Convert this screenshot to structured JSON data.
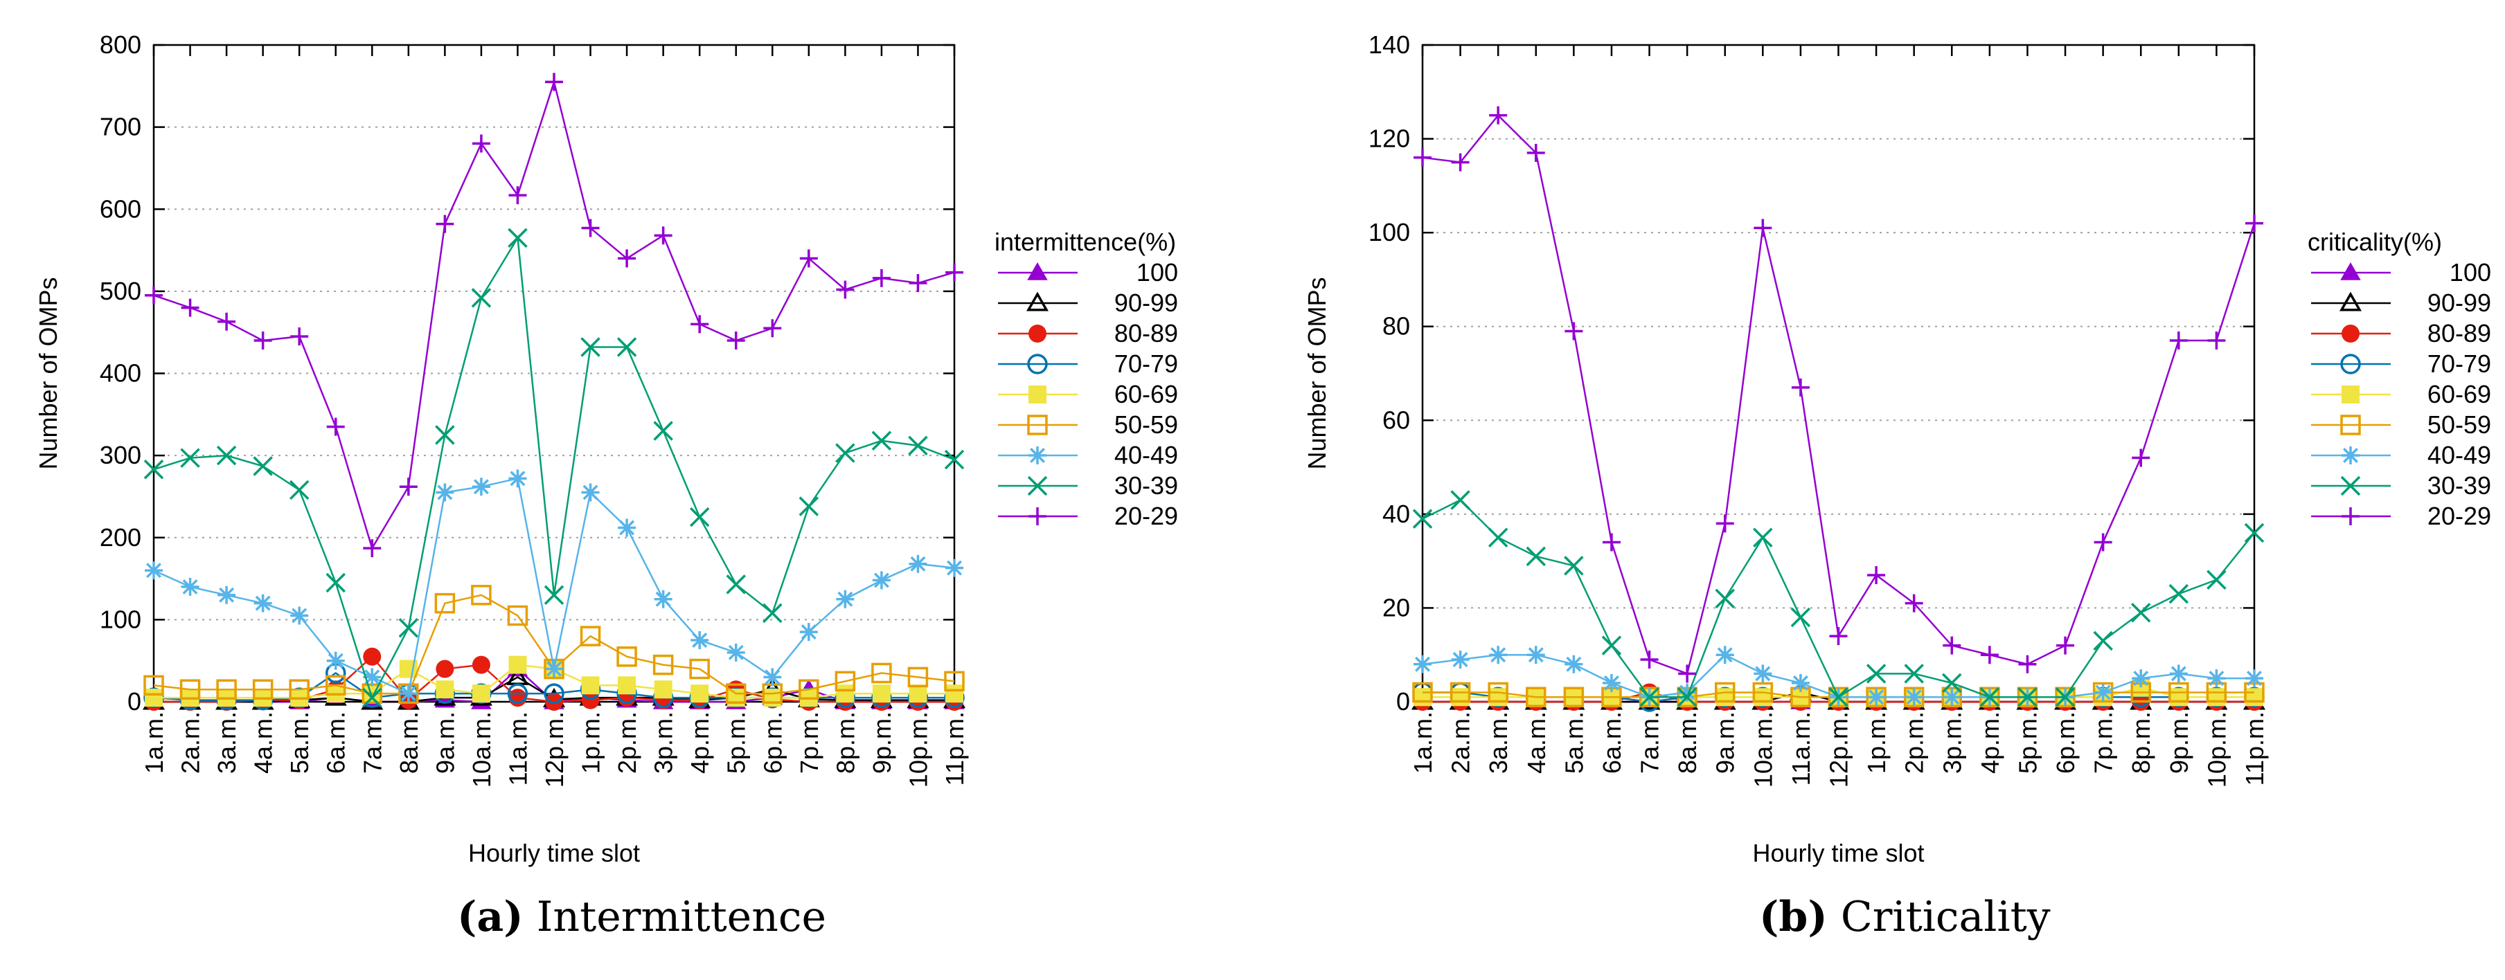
{
  "chart_data": [
    {
      "type": "line",
      "ylabel": "Number of OMPs",
      "xlabel": "Hourly time slot",
      "ylim": [
        0,
        800
      ],
      "yticks": [
        0,
        100,
        200,
        300,
        400,
        500,
        600,
        700,
        800
      ],
      "grid": "horizontal dotted",
      "legend_title": "intermittence(%)",
      "legend_position": "right",
      "categories": [
        "1a.m.",
        "2a.m.",
        "3a.m.",
        "4a.m.",
        "5a.m.",
        "6a.m.",
        "7a.m.",
        "8a.m.",
        "9a.m.",
        "10a.m.",
        "11a.m.",
        "12p.m.",
        "1p.m.",
        "2p.m.",
        "3p.m.",
        "4p.m.",
        "5p.m.",
        "6p.m.",
        "7p.m.",
        "8p.m.",
        "9p.m.",
        "10p.m.",
        "11p.m."
      ],
      "series": [
        {
          "name": "100",
          "color": "#9400d3",
          "marker": "filled-triangle",
          "values": [
            0,
            0,
            0,
            0,
            0,
            5,
            0,
            0,
            2,
            0,
            40,
            0,
            5,
            2,
            0,
            0,
            0,
            5,
            15,
            0,
            0,
            0,
            0
          ]
        },
        {
          "name": "90-99",
          "color": "#000000",
          "marker": "open-triangle",
          "values": [
            0,
            0,
            0,
            0,
            2,
            5,
            0,
            0,
            5,
            5,
            30,
            3,
            5,
            5,
            5,
            2,
            5,
            15,
            3,
            2,
            2,
            2,
            2
          ]
        },
        {
          "name": "80-89",
          "color": "#e51e10",
          "marker": "filled-circle",
          "values": [
            0,
            0,
            0,
            2,
            2,
            15,
            55,
            2,
            40,
            45,
            5,
            0,
            2,
            5,
            2,
            2,
            15,
            3,
            0,
            0,
            0,
            0,
            0
          ]
        },
        {
          "name": "70-79",
          "color": "#0072b2",
          "marker": "open-circle",
          "values": [
            5,
            2,
            2,
            2,
            5,
            35,
            5,
            10,
            10,
            10,
            10,
            10,
            15,
            10,
            5,
            5,
            5,
            5,
            5,
            5,
            5,
            5,
            5
          ]
        },
        {
          "name": "60-69",
          "color": "#f0e442",
          "marker": "filled-square",
          "values": [
            5,
            5,
            5,
            5,
            5,
            10,
            10,
            40,
            15,
            10,
            45,
            40,
            20,
            20,
            15,
            10,
            5,
            5,
            5,
            10,
            10,
            10,
            10
          ]
        },
        {
          "name": "50-59",
          "color": "#e69f00",
          "marker": "open-square",
          "values": [
            20,
            15,
            15,
            15,
            15,
            20,
            10,
            10,
            120,
            130,
            105,
            40,
            80,
            55,
            45,
            40,
            10,
            10,
            15,
            25,
            35,
            30,
            25
          ]
        },
        {
          "name": "40-49",
          "color": "#56b4e9",
          "marker": "asterisk",
          "values": [
            160,
            140,
            130,
            120,
            105,
            50,
            30,
            10,
            255,
            262,
            272,
            40,
            255,
            212,
            125,
            75,
            60,
            30,
            85,
            125,
            148,
            168,
            163
          ]
        },
        {
          "name": "30-39",
          "color": "#009e73",
          "marker": "cross",
          "values": [
            283,
            297,
            300,
            287,
            258,
            145,
            5,
            90,
            325,
            492,
            565,
            130,
            432,
            432,
            330,
            225,
            143,
            108,
            238,
            303,
            318,
            312,
            295
          ]
        },
        {
          "name": "20-29",
          "color": "#9400d3",
          "marker": "plus",
          "values": [
            495,
            480,
            463,
            440,
            445,
            335,
            187,
            262,
            582,
            680,
            617,
            755,
            577,
            540,
            568,
            460,
            440,
            455,
            540,
            502,
            516,
            510,
            523
          ]
        }
      ]
    },
    {
      "type": "line",
      "ylabel": "Number of OMPs",
      "xlabel": "Hourly time slot",
      "ylim": [
        0,
        140
      ],
      "yticks": [
        0,
        20,
        40,
        60,
        80,
        100,
        120,
        140
      ],
      "grid": "horizontal dotted",
      "legend_title": "criticality(%)",
      "legend_position": "right",
      "categories": [
        "1a.m.",
        "2a.m.",
        "3a.m.",
        "4a.m.",
        "5a.m.",
        "6a.m.",
        "7a.m.",
        "8a.m.",
        "9a.m.",
        "10a.m.",
        "11a.m.",
        "12p.m.",
        "1p.m.",
        "2p.m.",
        "3p.m.",
        "4p.m.",
        "5p.m.",
        "6p.m.",
        "7p.m.",
        "8p.m.",
        "9p.m.",
        "10p.m.",
        "11p.m."
      ],
      "series": [
        {
          "name": "100",
          "color": "#9400d3",
          "marker": "filled-triangle",
          "values": [
            0,
            0,
            0,
            0,
            0,
            0,
            0,
            0,
            0,
            0,
            0,
            0,
            0,
            0,
            0,
            0,
            0,
            0,
            0,
            0,
            0,
            0,
            0
          ]
        },
        {
          "name": "90-99",
          "color": "#000000",
          "marker": "open-triangle",
          "values": [
            0,
            0,
            0,
            0,
            0,
            0,
            0,
            0,
            0,
            0,
            2,
            0,
            0,
            0,
            0,
            0,
            0,
            0,
            0,
            0,
            0,
            0,
            0
          ]
        },
        {
          "name": "80-89",
          "color": "#e51e10",
          "marker": "filled-circle",
          "values": [
            0,
            0,
            0,
            0,
            0,
            0,
            2,
            0,
            0,
            0,
            0,
            0,
            0,
            0,
            0,
            0,
            0,
            0,
            0,
            0,
            0,
            0,
            0
          ]
        },
        {
          "name": "70-79",
          "color": "#0072b2",
          "marker": "open-circle",
          "values": [
            2,
            2,
            1,
            1,
            1,
            1,
            0,
            1,
            1,
            1,
            1,
            1,
            1,
            1,
            1,
            1,
            1,
            1,
            1,
            1,
            1,
            1,
            1
          ]
        },
        {
          "name": "60-69",
          "color": "#f0e442",
          "marker": "filled-square",
          "values": [
            1,
            1,
            1,
            1,
            1,
            1,
            1,
            1,
            1,
            1,
            1,
            1,
            1,
            1,
            1,
            1,
            1,
            1,
            1,
            3,
            1,
            1,
            1
          ]
        },
        {
          "name": "50-59",
          "color": "#e69f00",
          "marker": "open-square",
          "values": [
            2,
            2,
            2,
            1,
            1,
            1,
            1,
            1,
            2,
            2,
            1,
            1,
            1,
            1,
            1,
            1,
            1,
            1,
            2,
            2,
            2,
            2,
            2
          ]
        },
        {
          "name": "40-49",
          "color": "#56b4e9",
          "marker": "asterisk",
          "values": [
            8,
            9,
            10,
            10,
            8,
            4,
            1,
            2,
            10,
            6,
            4,
            1,
            1,
            1,
            1,
            1,
            1,
            1,
            2,
            5,
            6,
            5,
            5
          ]
        },
        {
          "name": "30-39",
          "color": "#009e73",
          "marker": "cross",
          "values": [
            39,
            43,
            35,
            31,
            29,
            12,
            1,
            1,
            22,
            35,
            18,
            1,
            6,
            6,
            4,
            1,
            1,
            1,
            13,
            19,
            23,
            26,
            36
          ]
        },
        {
          "name": "20-29",
          "color": "#9400d3",
          "marker": "plus",
          "values": [
            116,
            115,
            125,
            117,
            79,
            34,
            9,
            6,
            38,
            101,
            67,
            14,
            27,
            21,
            12,
            10,
            8,
            12,
            34,
            52,
            77,
            77,
            102
          ]
        }
      ]
    }
  ],
  "captions": [
    {
      "letter": "(a)",
      "text": "Intermittence"
    },
    {
      "letter": "(b)",
      "text": "Criticality"
    }
  ]
}
